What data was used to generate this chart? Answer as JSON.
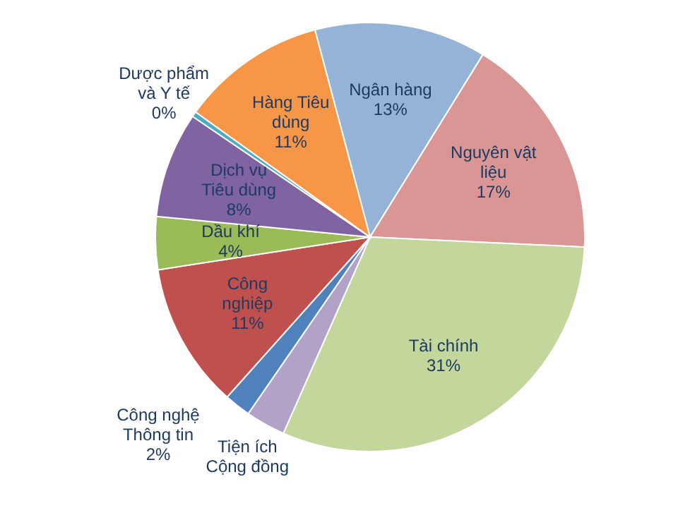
{
  "chart_data": {
    "type": "pie",
    "categories": [
      "Ngân hàng",
      "Nguyên vật liệu",
      "Tài chính",
      "Tiện ích Cộng đồng",
      "Công nghệ Thông tin",
      "Công nghiệp",
      "Dầu khí",
      "Dịch vụ Tiêu dùng",
      "Dược phẩm và Y tế",
      "Hàng Tiêu dùng"
    ],
    "values": [
      13,
      17,
      31,
      3,
      2,
      11,
      4,
      8,
      0.4,
      11
    ],
    "value_labels": [
      "13%",
      "17%",
      "31%",
      null,
      "2%",
      "11%",
      "4%",
      "8%",
      "0%",
      "11%"
    ],
    "colors": [
      "#95b3d7",
      "#d99694",
      "#c3d69b",
      "#b3a2c7",
      "#4f81bd",
      "#c0504d",
      "#9bbb59",
      "#8064a2",
      "#4bacc6",
      "#f79646"
    ]
  }
}
